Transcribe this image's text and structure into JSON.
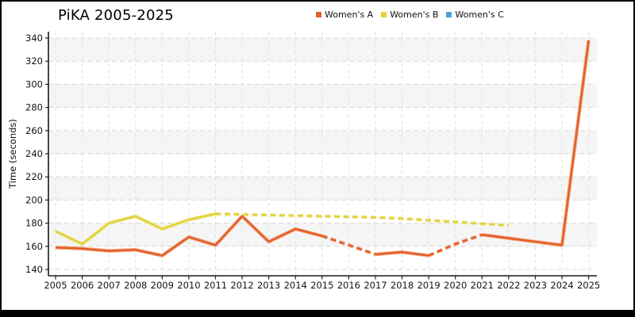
{
  "chart": {
    "title": "PiKA 2005-2025",
    "y_axis_label": "Time (seconds)"
  },
  "chart_data": {
    "type": "line",
    "title": "PiKA 2005-2025",
    "xlabel": "",
    "ylabel": "Time (seconds)",
    "x": [
      2005,
      2006,
      2007,
      2008,
      2009,
      2010,
      2011,
      2012,
      2013,
      2014,
      2015,
      2016,
      2017,
      2018,
      2019,
      2020,
      2021,
      2022,
      2023,
      2024,
      2025
    ],
    "y_ticks": [
      140,
      160,
      180,
      200,
      220,
      240,
      260,
      280,
      300,
      320,
      340
    ],
    "ylim": [
      140,
      340
    ],
    "grid": true,
    "legend_position": "top-center",
    "series": [
      {
        "name": "Women's A",
        "color": "#E2602C",
        "halo": "#F3A478",
        "values": [
          159,
          158,
          156,
          157,
          152,
          168,
          161,
          186,
          164,
          175,
          169,
          161,
          153,
          155,
          152,
          162,
          170,
          167,
          164,
          161,
          338
        ],
        "dashed_spans": [
          [
            2015,
            2017
          ],
          [
            2019,
            2021
          ]
        ]
      },
      {
        "name": "Women's B",
        "color": "#E2D337",
        "halo": "#F0E79C",
        "values": [
          173,
          162,
          180,
          186,
          175,
          183,
          188,
          187.5,
          187,
          186.5,
          186,
          185.5,
          185,
          184,
          182.5,
          181,
          179.5,
          178
        ],
        "dashed_spans": [
          [
            2011,
            2022
          ]
        ]
      },
      {
        "name": "Women's C",
        "color": "#4AA2DD",
        "halo": "#A5D1EE",
        "values": [],
        "dashed_spans": []
      }
    ]
  }
}
